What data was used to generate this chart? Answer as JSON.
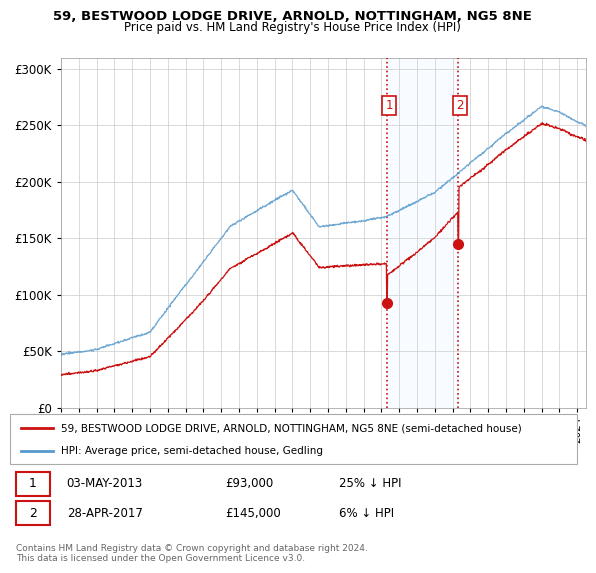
{
  "title": "59, BESTWOOD LODGE DRIVE, ARNOLD, NOTTINGHAM, NG5 8NE",
  "subtitle": "Price paid vs. HM Land Registry's House Price Index (HPI)",
  "ylim": [
    0,
    310000
  ],
  "yticks": [
    0,
    50000,
    100000,
    150000,
    200000,
    250000,
    300000
  ],
  "ytick_labels": [
    "£0",
    "£50K",
    "£100K",
    "£150K",
    "£200K",
    "£250K",
    "£300K"
  ],
  "background_color": "#ffffff",
  "plot_bg_color": "#ffffff",
  "grid_color": "#cccccc",
  "hpi_line_color": "#5599cc",
  "price_line_color": "#cc1111",
  "sale1_date": "03-MAY-2013",
  "sale1_price": 93000,
  "sale1_pct": "25% ↓ HPI",
  "sale1_x": 2013.34,
  "sale2_date": "28-APR-2017",
  "sale2_price": 145000,
  "sale2_pct": "6% ↓ HPI",
  "sale2_x": 2017.32,
  "shade_color": "#ddeeff",
  "legend_label_price": "59, BESTWOOD LODGE DRIVE, ARNOLD, NOTTINGHAM, NG5 8NE (semi-detached house)",
  "legend_label_hpi": "HPI: Average price, semi-detached house, Gedling",
  "footer": "Contains HM Land Registry data © Crown copyright and database right 2024.\nThis data is licensed under the Open Government Licence v3.0."
}
